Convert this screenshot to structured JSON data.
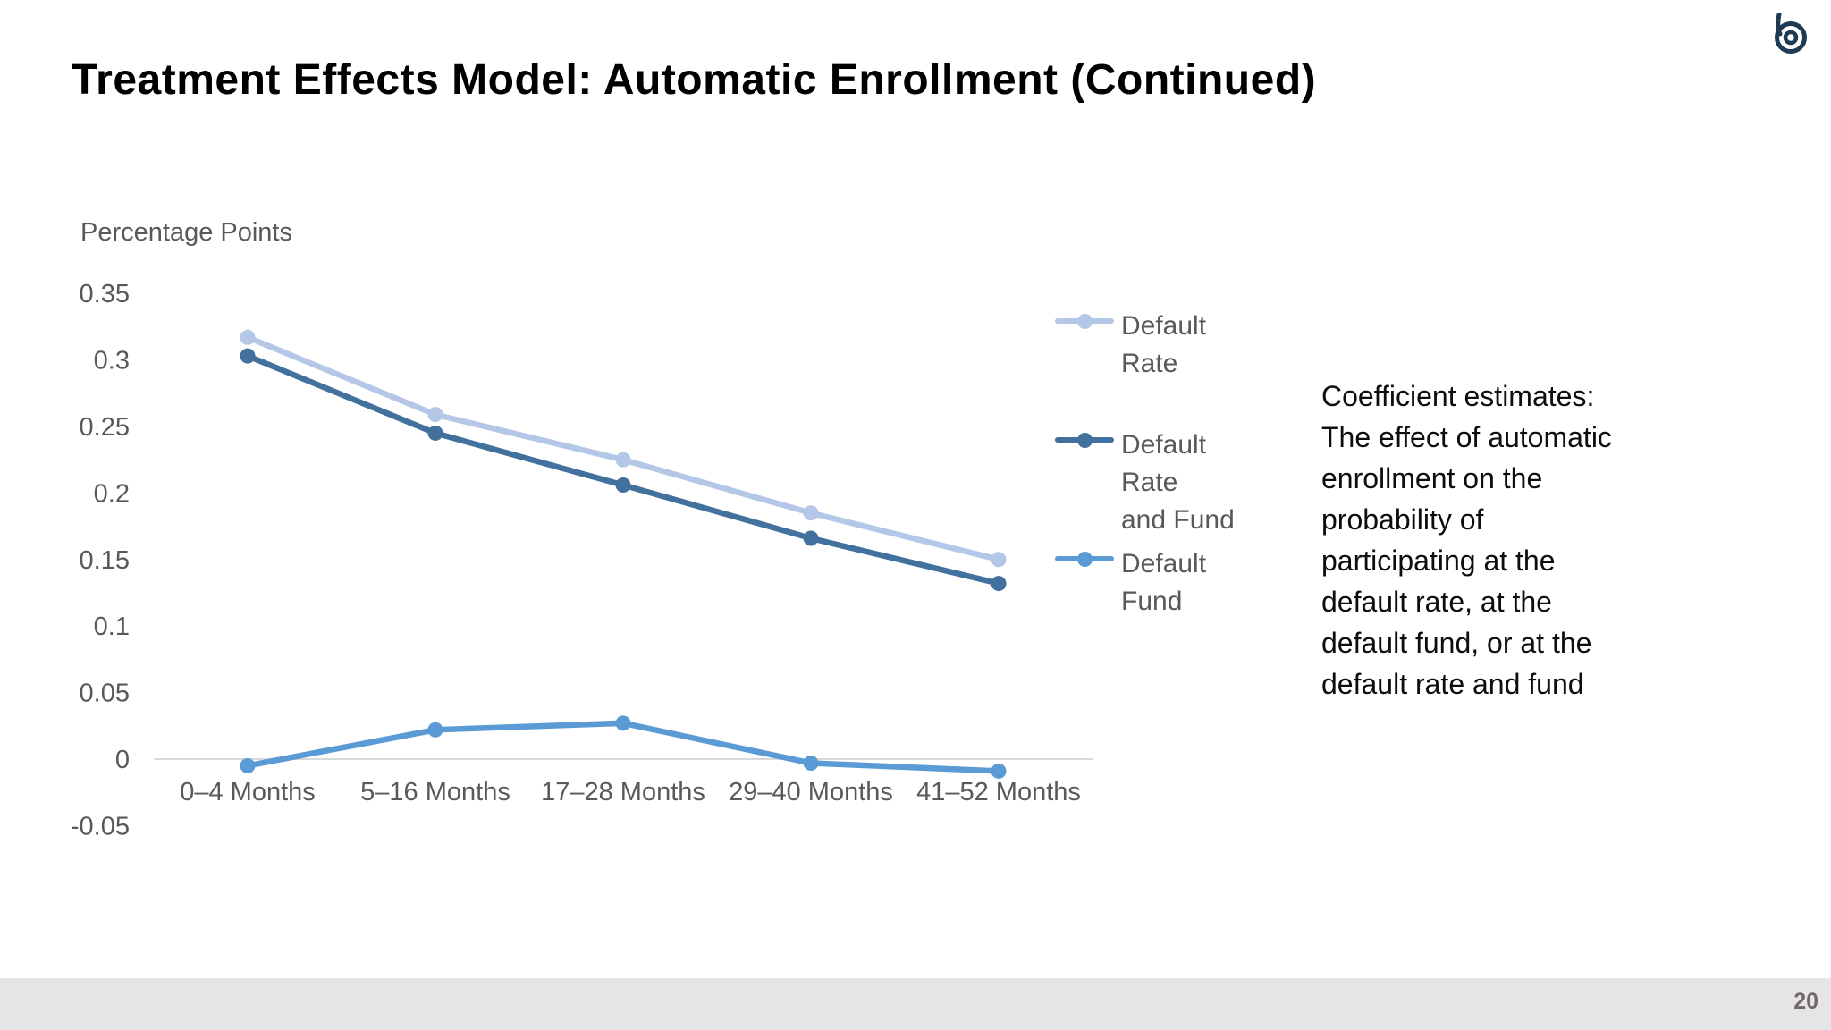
{
  "slide": {
    "title": "Treatment Effects Model: Automatic Enrollment (Continued)",
    "annotation": "Coefficient estimates:\nThe effect of automatic\nenrollment on the\nprobability of\nparticipating at the\ndefault rate, at the\ndefault fund, or at the\ndefault rate and fund",
    "page_number": "20",
    "logo_name": "b-spiral-logo",
    "logo_color": "#1f3a54",
    "footer_color": "#e6e4e6"
  },
  "chart_data": {
    "type": "line",
    "title": "",
    "ylabel": "Percentage Points",
    "xlabel": "",
    "categories": [
      "0–4 Months",
      "5–16 Months",
      "17–28 Months",
      "29–40 Months",
      "41–52 Months"
    ],
    "series": [
      {
        "name": "Default Rate",
        "legend_label": "Default\nRate",
        "color": "#B4C7E7",
        "values": [
          0.317,
          0.259,
          0.225,
          0.185,
          0.15
        ]
      },
      {
        "name": "Default Rate and Fund",
        "legend_label": "Default\nRate\nand Fund",
        "color": "#41719C",
        "values": [
          0.303,
          0.245,
          0.206,
          0.166,
          0.132
        ]
      },
      {
        "name": "Default Fund",
        "legend_label": "Default\nFund",
        "color": "#5B9BD5",
        "values": [
          -0.005,
          0.022,
          0.027,
          -0.003,
          -0.009
        ]
      }
    ],
    "ytick_labels": [
      "0.35",
      "0.3",
      "0.25",
      "0.2",
      "0.15",
      "0.1",
      "0.05",
      "0",
      "-0.05"
    ],
    "ylim": [
      -0.05,
      0.35
    ],
    "grid": "zero-line-only",
    "axis_line_color": "#d9d9d9",
    "tick_label_color": "#595959",
    "legend_position": "right"
  }
}
